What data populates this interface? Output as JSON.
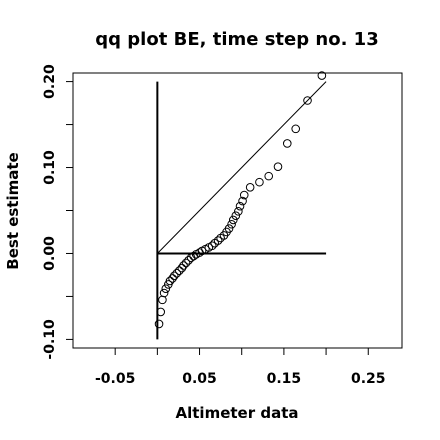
{
  "chart_data": {
    "type": "scatter",
    "title": "qq plot BE, time step no. 13",
    "xlabel": "Altimeter data",
    "ylabel": "Best estimate",
    "xlim": [
      -0.1,
      0.29
    ],
    "ylim": [
      -0.11,
      0.21
    ],
    "x_ticks": [
      -0.05,
      0.05,
      0.15,
      0.25
    ],
    "x_tick_labels": [
      "-0.05",
      "0.05",
      "0.15",
      "0.25"
    ],
    "y_ticks": [
      -0.1,
      0.0,
      0.1,
      0.2
    ],
    "y_tick_labels": [
      "-0.10",
      "0.00",
      "0.10",
      "0.20"
    ],
    "x_minor_ticks": [
      0.0,
      0.1,
      0.2
    ],
    "y_minor_ticks": [
      -0.05,
      0.05,
      0.15
    ],
    "reference_line": {
      "from": [
        0.0,
        0.0
      ],
      "to": [
        0.2,
        0.2
      ]
    },
    "vertical_line": {
      "x": 0.0,
      "y_from": -0.1,
      "y_to": 0.2
    },
    "horizontal_line": {
      "y": 0.0,
      "x_from": 0.0,
      "x_to": 0.2
    },
    "points": [
      {
        "x": 0.002,
        "y": -0.082
      },
      {
        "x": 0.004,
        "y": -0.068
      },
      {
        "x": 0.006,
        "y": -0.054
      },
      {
        "x": 0.008,
        "y": -0.046
      },
      {
        "x": 0.01,
        "y": -0.041
      },
      {
        "x": 0.013,
        "y": -0.036
      },
      {
        "x": 0.015,
        "y": -0.032
      },
      {
        "x": 0.018,
        "y": -0.029
      },
      {
        "x": 0.02,
        "y": -0.026
      },
      {
        "x": 0.023,
        "y": -0.023
      },
      {
        "x": 0.026,
        "y": -0.02
      },
      {
        "x": 0.029,
        "y": -0.017
      },
      {
        "x": 0.031,
        "y": -0.014
      },
      {
        "x": 0.034,
        "y": -0.011
      },
      {
        "x": 0.037,
        "y": -0.008
      },
      {
        "x": 0.04,
        "y": -0.005
      },
      {
        "x": 0.043,
        "y": -0.003
      },
      {
        "x": 0.046,
        "y": -0.001
      },
      {
        "x": 0.05,
        "y": 0.001
      },
      {
        "x": 0.053,
        "y": 0.003
      },
      {
        "x": 0.057,
        "y": 0.005
      },
      {
        "x": 0.061,
        "y": 0.007
      },
      {
        "x": 0.065,
        "y": 0.009
      },
      {
        "x": 0.068,
        "y": 0.012
      },
      {
        "x": 0.072,
        "y": 0.015
      },
      {
        "x": 0.075,
        "y": 0.018
      },
      {
        "x": 0.079,
        "y": 0.021
      },
      {
        "x": 0.082,
        "y": 0.025
      },
      {
        "x": 0.085,
        "y": 0.029
      },
      {
        "x": 0.088,
        "y": 0.034
      },
      {
        "x": 0.09,
        "y": 0.039
      },
      {
        "x": 0.093,
        "y": 0.044
      },
      {
        "x": 0.096,
        "y": 0.049
      },
      {
        "x": 0.098,
        "y": 0.055
      },
      {
        "x": 0.101,
        "y": 0.061
      },
      {
        "x": 0.103,
        "y": 0.068
      },
      {
        "x": 0.11,
        "y": 0.077
      },
      {
        "x": 0.121,
        "y": 0.083
      },
      {
        "x": 0.132,
        "y": 0.09
      },
      {
        "x": 0.143,
        "y": 0.101
      },
      {
        "x": 0.154,
        "y": 0.128
      },
      {
        "x": 0.164,
        "y": 0.145
      },
      {
        "x": 0.178,
        "y": 0.178
      },
      {
        "x": 0.195,
        "y": 0.207
      }
    ]
  }
}
